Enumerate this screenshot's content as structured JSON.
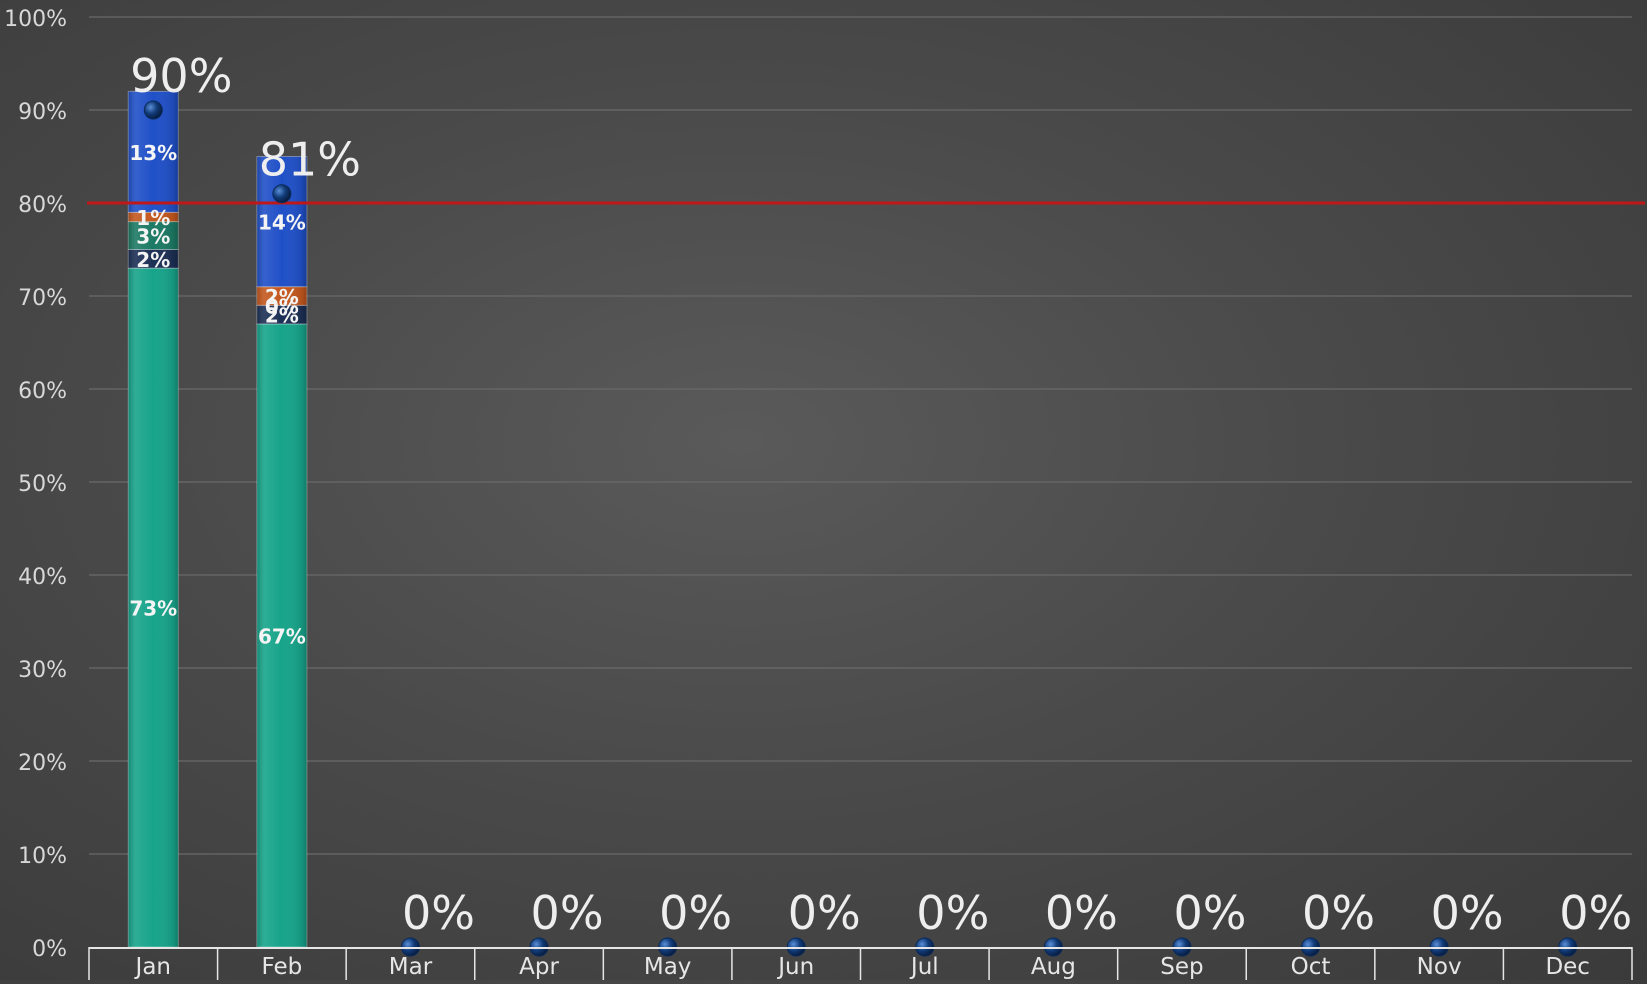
{
  "chart_data": {
    "type": "bar",
    "stacked": true,
    "categories": [
      "Jan",
      "Feb",
      "Mar",
      "Apr",
      "May",
      "Jun",
      "Jul",
      "Aug",
      "Sep",
      "Oct",
      "Nov",
      "Dec"
    ],
    "series": [
      {
        "values": [
          73,
          67,
          0,
          0,
          0,
          0,
          0,
          0,
          0,
          0,
          0,
          0
        ],
        "color": "#17a48a",
        "labels": [
          "73%",
          "67%",
          "",
          "",
          "",
          "",
          "",
          "",
          "",
          "",
          "",
          ""
        ]
      },
      {
        "values": [
          2,
          2,
          0,
          0,
          0,
          0,
          0,
          0,
          0,
          0,
          0,
          0
        ],
        "color": "#1c2f55",
        "labels": [
          "2%",
          "2%",
          "",
          "",
          "",
          "",
          "",
          "",
          "",
          "",
          "",
          ""
        ]
      },
      {
        "values": [
          3,
          0,
          0,
          0,
          0,
          0,
          0,
          0,
          0,
          0,
          0,
          0
        ],
        "color": "#1c7a64",
        "labels": [
          "3%",
          "0%",
          "",
          "",
          "",
          "",
          "",
          "",
          "",
          "",
          "",
          ""
        ]
      },
      {
        "values": [
          1,
          2,
          0,
          0,
          0,
          0,
          0,
          0,
          0,
          0,
          0,
          0
        ],
        "color": "#c4581e",
        "labels": [
          "1%",
          "2%",
          "",
          "",
          "",
          "",
          "",
          "",
          "",
          "",
          "",
          ""
        ]
      },
      {
        "values": [
          13,
          14,
          0,
          0,
          0,
          0,
          0,
          0,
          0,
          0,
          0,
          0
        ],
        "color": "#2050c8",
        "labels": [
          "13%",
          "14%",
          "",
          "",
          "",
          "",
          "",
          "",
          "",
          "",
          "",
          ""
        ]
      }
    ],
    "marker_series": {
      "values": [
        90,
        81,
        0,
        0,
        0,
        0,
        0,
        0,
        0,
        0,
        0,
        0
      ],
      "labels": [
        "90%",
        "81%",
        "0%",
        "0%",
        "0%",
        "0%",
        "0%",
        "0%",
        "0%",
        "0%",
        "0%",
        "0%"
      ],
      "color": "#123c7a"
    },
    "target_line": {
      "value": 80,
      "color": "#c01818"
    },
    "ylim": [
      0,
      100
    ],
    "yticks": [
      "0%",
      "10%",
      "20%",
      "30%",
      "40%",
      "50%",
      "60%",
      "70%",
      "80%",
      "90%",
      "100%"
    ],
    "grid": true,
    "title": "",
    "xlabel": "",
    "ylabel": ""
  }
}
